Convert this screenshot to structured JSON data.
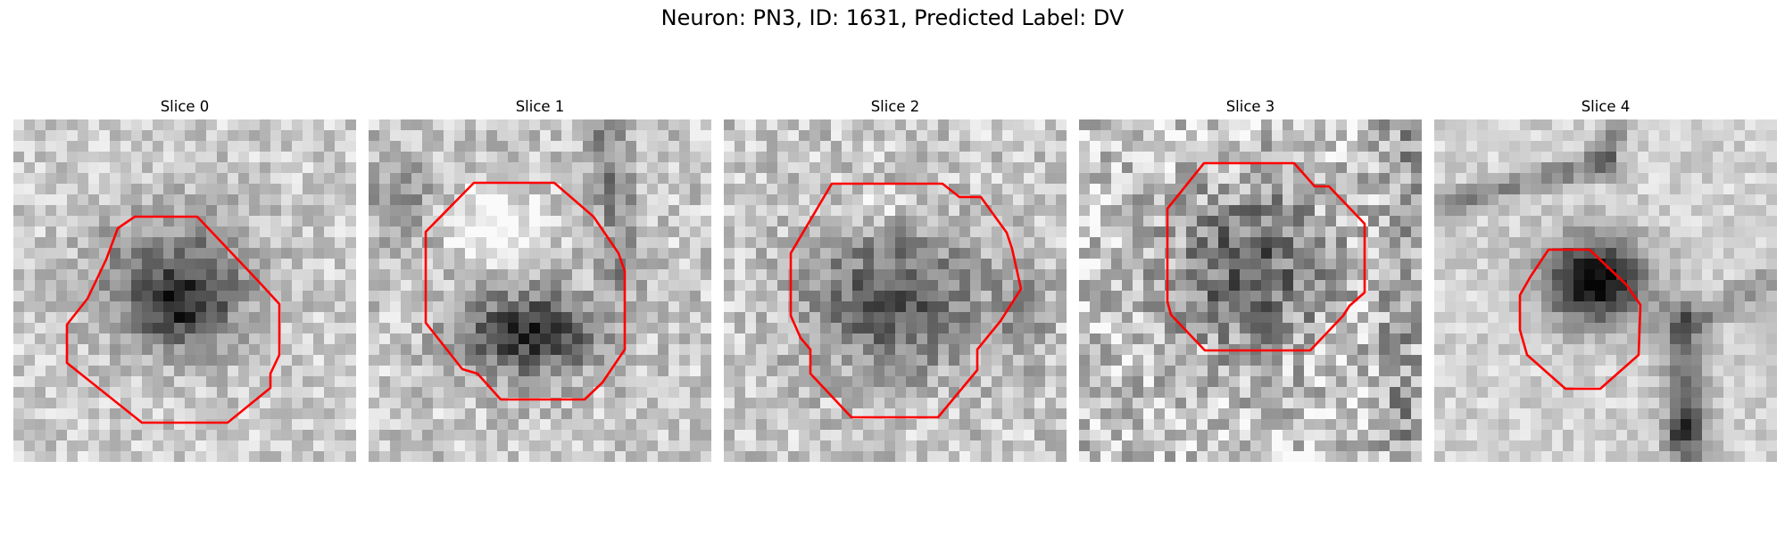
{
  "figure": {
    "title": "Neuron: PN3, ID: 1631, Predicted Label: DV"
  },
  "panels": [
    {
      "title": "Slice 0"
    },
    {
      "title": "Slice 1"
    },
    {
      "title": "Slice 2"
    },
    {
      "title": "Slice 3"
    },
    {
      "title": "Slice 4"
    }
  ],
  "colors": {
    "contour": "#ff0000"
  }
}
